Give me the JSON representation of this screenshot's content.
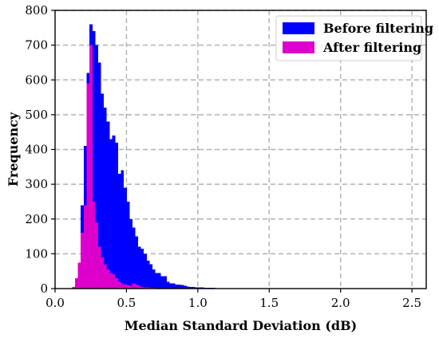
{
  "chart_data": {
    "type": "bar",
    "subtype": "histogram",
    "title": "",
    "xlabel": "Median Standard Deviation (dB)",
    "ylabel": "Frequency",
    "xlim": [
      0.0,
      2.6
    ],
    "ylim": [
      0,
      800
    ],
    "xticks": [
      0.0,
      0.5,
      1.0,
      1.5,
      2.0,
      2.5
    ],
    "xtick_labels": [
      "0.0",
      "0.5",
      "1.0",
      "1.5",
      "2.0",
      "2.5"
    ],
    "yticks": [
      0,
      100,
      200,
      300,
      400,
      500,
      600,
      700,
      800
    ],
    "ytick_labels": [
      "0",
      "100",
      "200",
      "300",
      "400",
      "500",
      "600",
      "700",
      "800"
    ],
    "grid": true,
    "legend_position": "top-right",
    "bin_start": 0.12,
    "bin_width": 0.02,
    "series": [
      {
        "name": "Before filtering",
        "color": "#0000ff",
        "values": [
          5,
          30,
          70,
          240,
          410,
          620,
          760,
          740,
          700,
          650,
          560,
          520,
          480,
          430,
          440,
          420,
          330,
          340,
          290,
          250,
          200,
          175,
          150,
          120,
          115,
          100,
          80,
          70,
          55,
          45,
          45,
          35,
          35,
          20,
          15,
          15,
          12,
          12,
          10,
          8,
          6,
          5,
          5,
          4,
          3,
          3,
          2,
          2,
          2,
          2,
          1,
          1,
          1
        ]
      },
      {
        "name": "After filtering",
        "color": "#dd00cc",
        "values": [
          5,
          30,
          75,
          160,
          240,
          590,
          700,
          250,
          190,
          120,
          90,
          70,
          55,
          45,
          40,
          30,
          20,
          15,
          12,
          10,
          8,
          15,
          12,
          8,
          5,
          4,
          3,
          2,
          2,
          1
        ]
      }
    ]
  }
}
